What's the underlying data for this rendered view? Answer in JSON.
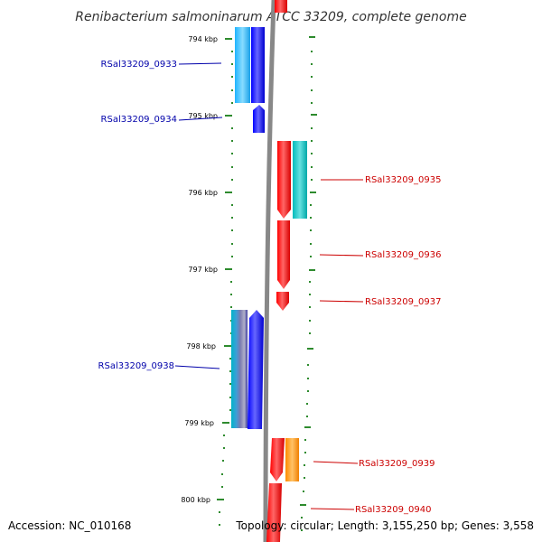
{
  "title": "Renibacterium salmoninarum ATCC 33209, complete genome",
  "footer": {
    "accession": "Accession: NC_010168",
    "topology": "Topology: circular; Length: 3,155,250 bp; Genes: 3,558"
  },
  "ticks": [
    "794 kbp",
    "795 kbp",
    "796 kbp",
    "797 kbp",
    "798 kbp",
    "799 kbp",
    "800 kbp"
  ],
  "genes": [
    {
      "id": "RSal33209_0933",
      "strand": "reverse"
    },
    {
      "id": "RSal33209_0934",
      "strand": "reverse"
    },
    {
      "id": "RSal33209_0935",
      "strand": "forward"
    },
    {
      "id": "RSal33209_0936",
      "strand": "forward"
    },
    {
      "id": "RSal33209_0937",
      "strand": "forward"
    },
    {
      "id": "RSal33209_0938",
      "strand": "reverse"
    },
    {
      "id": "RSal33209_0939",
      "strand": "forward"
    },
    {
      "id": "RSal33209_0940",
      "strand": "forward"
    }
  ],
  "colors": {
    "forward_gene": "#ff0000",
    "reverse_gene": "#0000ff",
    "forward_label": "#cc0000",
    "reverse_label": "#0000aa",
    "backbone": "#808080",
    "tick": "#2e8b2e",
    "cog_cyan": "#00cccc",
    "cog_lightblue": "#33ccff",
    "cog_orange": "#ff9900"
  }
}
